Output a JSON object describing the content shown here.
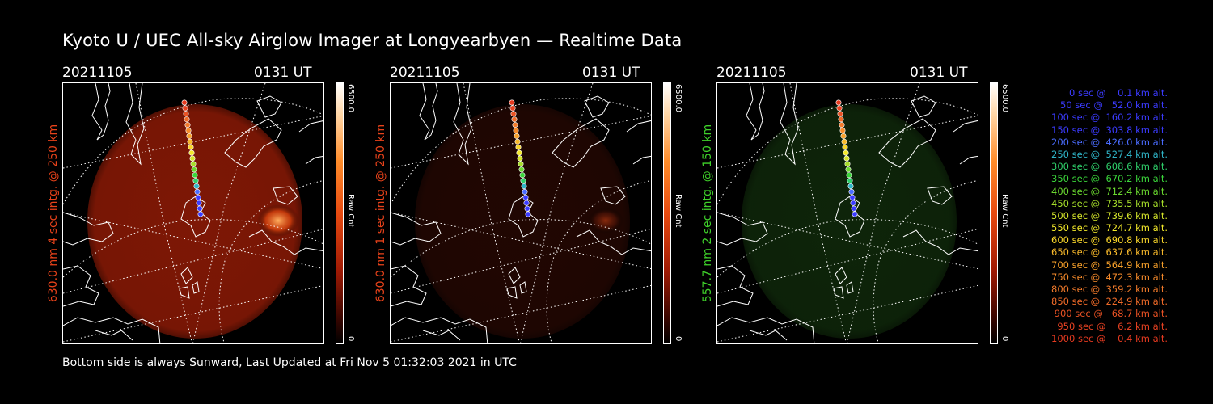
{
  "header": {
    "title": "Kyoto U / UEC All-sky Airglow Imager at Longyearbyen — Realtime Data"
  },
  "footer": {
    "text": "Bottom side is always Sunward, Last Updated at Fri Nov  5 01:32:03 2021 in UTC"
  },
  "panels": [
    {
      "date": "20211105",
      "time": "0131 UT",
      "ylabel": "630.0 nm 4 sec intg. @ 250 km",
      "ylabel_color": "#e8421a",
      "colorbar_max": "6500.0",
      "colorbar_min": "0",
      "colorbar_unit": "Raw Cnt",
      "emission_color": "#8c1a06",
      "emission_level": 0.55
    },
    {
      "date": "20211105",
      "time": "0131 UT",
      "ylabel": "630.0 nm 1 sec intg. @ 250 km",
      "ylabel_color": "#e8421a",
      "colorbar_max": "6500.0",
      "colorbar_min": "0",
      "colorbar_unit": "Raw Cnt",
      "emission_color": "#3a0c04",
      "emission_level": 0.22
    },
    {
      "date": "20211105",
      "time": "0131 UT",
      "ylabel": "557.7 nm 2 sec intg. @ 150 km",
      "ylabel_color": "#3fd12a",
      "colorbar_max": "6500.0",
      "colorbar_min": "0",
      "colorbar_unit": "Raw Cnt",
      "emission_color": "#173d10",
      "emission_level": 0.25
    }
  ],
  "legend": [
    {
      "text": "  0 sec @    0.1 km alt.",
      "color": "#3b3bff"
    },
    {
      "text": " 50 sec @   52.0 km alt.",
      "color": "#3b3bff"
    },
    {
      "text": "100 sec @  160.2 km alt.",
      "color": "#3b3bff"
    },
    {
      "text": "150 sec @  303.8 km alt.",
      "color": "#3b3bff"
    },
    {
      "text": "200 sec @  426.0 km alt.",
      "color": "#4a6cff"
    },
    {
      "text": "250 sec @  527.4 km alt.",
      "color": "#2fb5c8"
    },
    {
      "text": "300 sec @  608.6 km alt.",
      "color": "#2fcf6a"
    },
    {
      "text": "350 sec @  670.2 km alt.",
      "color": "#3bd63b"
    },
    {
      "text": "400 sec @  712.4 km alt.",
      "color": "#6ad82f"
    },
    {
      "text": "450 sec @  735.5 km alt.",
      "color": "#a6de2a"
    },
    {
      "text": "500 sec @  739.6 km alt.",
      "color": "#d4e42a"
    },
    {
      "text": "550 sec @  724.7 km alt.",
      "color": "#f2e82a"
    },
    {
      "text": "600 sec @  690.8 km alt.",
      "color": "#f7d42a"
    },
    {
      "text": "650 sec @  637.6 km alt.",
      "color": "#f7b82a"
    },
    {
      "text": "700 sec @  564.9 km alt.",
      "color": "#f7a02a"
    },
    {
      "text": "750 sec @  472.3 km alt.",
      "color": "#f58a2a"
    },
    {
      "text": "800 sec @  359.2 km alt.",
      "color": "#f27a2a"
    },
    {
      "text": "850 sec @  224.9 km alt.",
      "color": "#ef6a28"
    },
    {
      "text": "900 sec @   68.7 km alt.",
      "color": "#ea5224"
    },
    {
      "text": "950 sec @    6.2 km alt.",
      "color": "#e84222"
    },
    {
      "text": "1000 sec @    0.4 km alt.",
      "color": "#e63a20"
    }
  ]
}
